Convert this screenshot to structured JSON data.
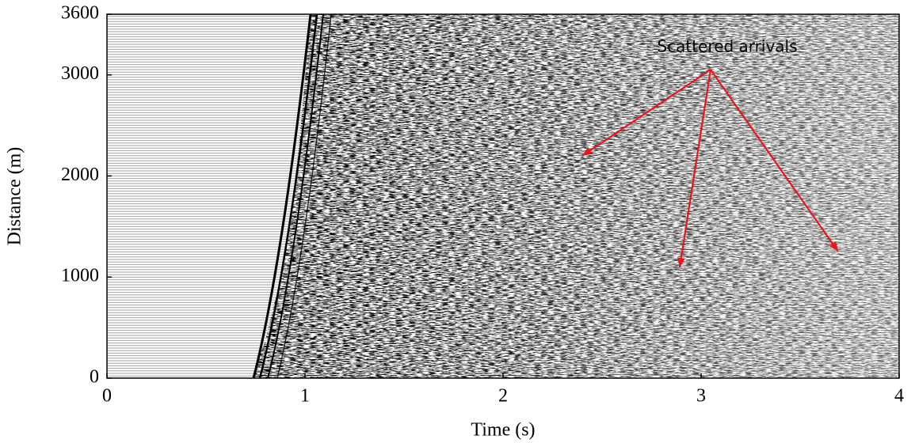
{
  "chart_data": {
    "type": "image",
    "xlabel": "Time (s)",
    "ylabel": "Distance (m)",
    "xlim": [
      0,
      4
    ],
    "ylim": [
      0,
      3600
    ],
    "xticks": [
      0,
      1,
      2,
      3,
      4
    ],
    "yticks": [
      0,
      1000,
      2000,
      3000,
      3600
    ],
    "annotations": [
      {
        "text": "Scattered arrivals",
        "color": "#e8141e"
      }
    ]
  }
}
